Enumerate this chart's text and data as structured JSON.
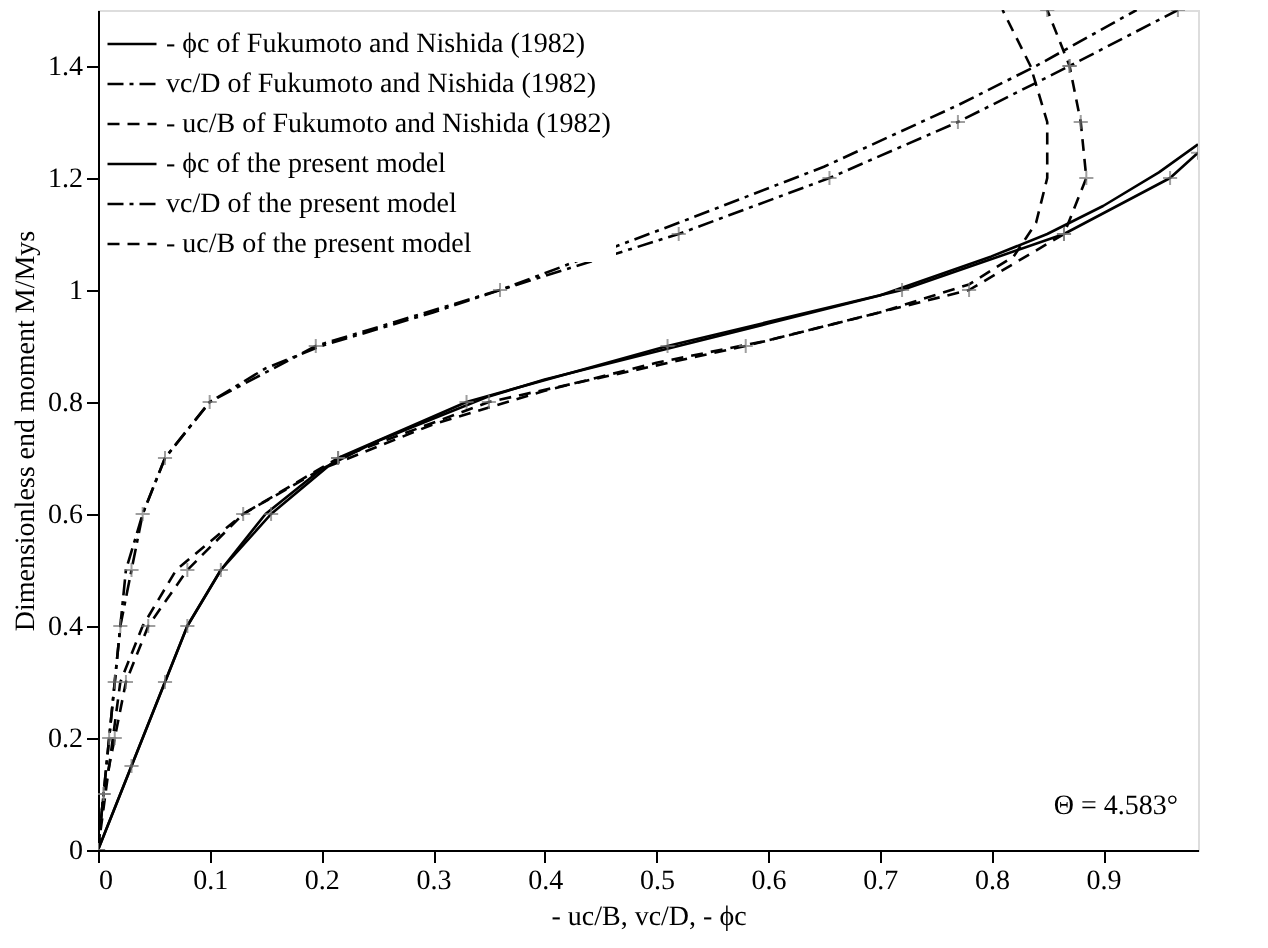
{
  "chart_data": {
    "type": "line",
    "xlabel": "- uc/B, vc/D, - ϕc",
    "ylabel": "Dimensionless end moment M/Mys",
    "xlim": [
      0,
      0.985
    ],
    "ylim": [
      0,
      1.5
    ],
    "xticks": [
      0,
      0.1,
      0.2,
      0.3,
      0.4,
      0.5,
      0.6,
      0.7,
      0.8,
      0.9
    ],
    "yticks": [
      0,
      0.2,
      0.4,
      0.6,
      0.8,
      1,
      1.2,
      1.4
    ],
    "grid": false,
    "legend": "top left",
    "annotations": [
      "Θ = 4.583°"
    ],
    "series": [
      {
        "name": "- ϕc of Fukumoto and Nishida (1982)",
        "color": "#000000",
        "line_style": "solid",
        "marker": "none",
        "x": [
          0,
          0.02,
          0.05,
          0.08,
          0.11,
          0.15,
          0.2,
          0.25,
          0.3,
          0.35,
          0.4,
          0.5,
          0.6,
          0.7,
          0.8,
          0.85,
          0.9,
          0.95,
          0.985
        ],
        "values": [
          0,
          0.1,
          0.25,
          0.4,
          0.5,
          0.6,
          0.68,
          0.73,
          0.77,
          0.81,
          0.84,
          0.89,
          0.94,
          0.99,
          1.06,
          1.1,
          1.15,
          1.21,
          1.26
        ]
      },
      {
        "name": "vc/D of Fukumoto and Nishida (1982)",
        "color": "#000000",
        "line_style": "dashdot",
        "marker": "none",
        "x": [
          0,
          0.005,
          0.015,
          0.025,
          0.04,
          0.06,
          0.1,
          0.15,
          0.2,
          0.3,
          0.36,
          0.52,
          0.65,
          0.77,
          0.84,
          0.93
        ],
        "values": [
          0,
          0.1,
          0.3,
          0.5,
          0.6,
          0.7,
          0.8,
          0.86,
          0.9,
          0.96,
          1.0,
          1.12,
          1.22,
          1.33,
          1.4,
          1.5
        ]
      },
      {
        "name": "- uc/B of Fukumoto and Nishida (1982)",
        "color": "#000000",
        "line_style": "dashed",
        "marker": "none",
        "x": [
          0,
          0.01,
          0.02,
          0.04,
          0.07,
          0.13,
          0.2,
          0.25,
          0.3,
          0.4,
          0.5,
          0.6,
          0.7,
          0.78,
          0.82,
          0.84,
          0.85,
          0.85,
          0.835,
          0.81
        ],
        "values": [
          0,
          0.15,
          0.3,
          0.4,
          0.5,
          0.6,
          0.68,
          0.72,
          0.76,
          0.82,
          0.87,
          0.91,
          0.96,
          1.01,
          1.06,
          1.12,
          1.2,
          1.3,
          1.4,
          1.5
        ]
      },
      {
        "name": "- ϕc of the present model",
        "color": "#000000",
        "line_style": "solid",
        "marker": "cross",
        "x": [
          0,
          0.03,
          0.06,
          0.08,
          0.11,
          0.155,
          0.215,
          0.33,
          0.51,
          0.72,
          0.865,
          0.96,
          0.985
        ],
        "values": [
          0,
          0.15,
          0.3,
          0.4,
          0.5,
          0.6,
          0.7,
          0.8,
          0.9,
          1.0,
          1.1,
          1.2,
          1.245
        ]
      },
      {
        "name": "vc/D of the present model",
        "color": "#000000",
        "line_style": "dashdot",
        "marker": "cross",
        "x": [
          0,
          0.005,
          0.01,
          0.015,
          0.02,
          0.03,
          0.04,
          0.06,
          0.1,
          0.195,
          0.36,
          0.52,
          0.655,
          0.77,
          0.87,
          0.967
        ],
        "values": [
          0,
          0.1,
          0.2,
          0.3,
          0.4,
          0.5,
          0.6,
          0.7,
          0.8,
          0.9,
          1.0,
          1.1,
          1.2,
          1.3,
          1.4,
          1.5
        ]
      },
      {
        "name": "- uc/B of the present model",
        "color": "#000000",
        "line_style": "dashed",
        "marker": "cross",
        "x": [
          0,
          0.005,
          0.015,
          0.025,
          0.045,
          0.08,
          0.13,
          0.215,
          0.35,
          0.58,
          0.78,
          0.865,
          0.885,
          0.88,
          0.87,
          0.85
        ],
        "values": [
          0,
          0.1,
          0.2,
          0.3,
          0.4,
          0.5,
          0.6,
          0.7,
          0.8,
          0.9,
          1.0,
          1.1,
          1.2,
          1.3,
          1.4,
          1.5
        ]
      }
    ]
  }
}
